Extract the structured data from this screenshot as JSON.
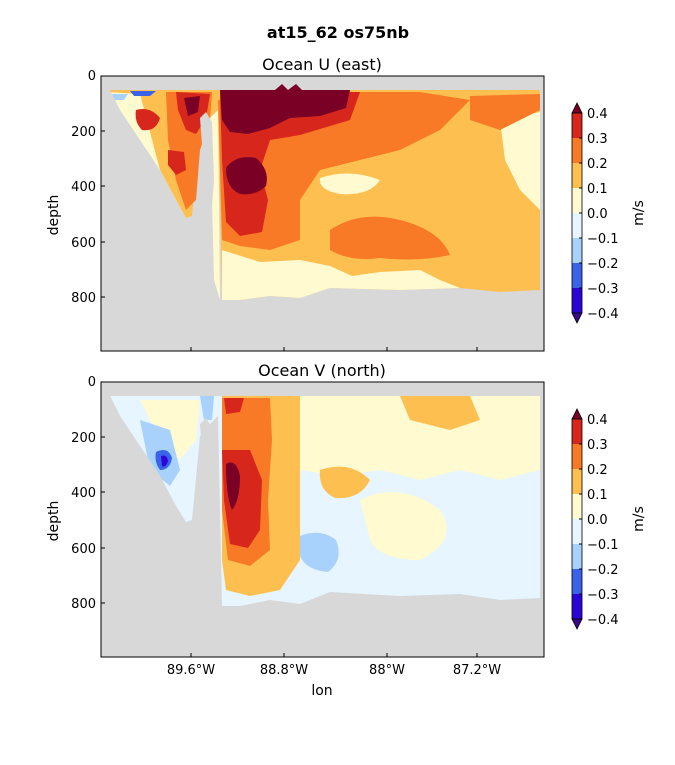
{
  "figure": {
    "suptitle": "at15_62 os75nb"
  },
  "colorbar": {
    "levels": [
      -0.4,
      -0.3,
      -0.2,
      -0.1,
      0.0,
      0.1,
      0.2,
      0.3,
      0.4
    ],
    "tick_labels": [
      "0.4",
      "0.3",
      "0.2",
      "0.1",
      "0.0",
      "−0.1",
      "−0.2",
      "−0.3",
      "−0.4"
    ],
    "unit_label": "m/s",
    "band_colors": [
      "#2a05d6",
      "#3b63ea",
      "#a8d2fc",
      "#e6f5ff",
      "#fffad0",
      "#fdc050",
      "#f87a27",
      "#d7261b"
    ],
    "under_color": "#3a0a8a",
    "over_color": "#7a0026"
  },
  "chart_data": [
    {
      "type": "heatmap",
      "title": "Ocean U (east)",
      "xlabel": "",
      "ylabel": "depth",
      "y_ticks": [
        "0",
        "200",
        "400",
        "600",
        "800"
      ],
      "x_ticks": [],
      "xlim": [
        -90.35,
        -86.75
      ],
      "ylim": [
        1000,
        0
      ],
      "land_color": "#d8d8d8",
      "summary": "Eastward flow dominates: strong (>0.4 m/s) near-surface core around 89.3-88.6W and a subsurface core near 89.2W at ~350 m; weaker 0.1-0.2 m/s eastward flow across the basin to ~800 m depth."
    },
    {
      "type": "heatmap",
      "title": "Ocean V (north)",
      "xlabel": "lon",
      "ylabel": "depth",
      "y_ticks": [
        "0",
        "200",
        "400",
        "600",
        "800"
      ],
      "x_ticks": [
        "89.6°W",
        "88.8°W",
        "88°W",
        "87.2°W"
      ],
      "x_tick_values": [
        -89.6,
        -88.8,
        -88.0,
        -87.2
      ],
      "xlim": [
        -90.35,
        -86.75
      ],
      "ylim": [
        1000,
        0
      ],
      "land_color": "#d8d8d8",
      "summary": "Northward flow of 0.2-0.4 m/s concentrated in a western boundary current near 89.2-88.9W (200-600 m); weak southward flow (-0.1 to -0.2) in the interior and a small southward core near 89.4W at ~280 m."
    }
  ]
}
